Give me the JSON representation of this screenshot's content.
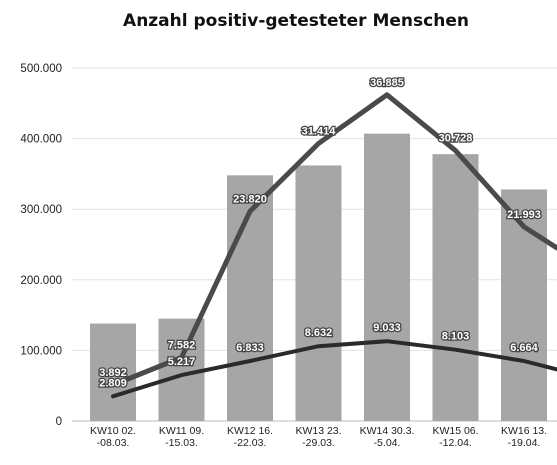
{
  "chart_data": {
    "type": "bar",
    "title": "Anzahl positiv-getesteter Menschen",
    "xlabel": "",
    "ylabel": "",
    "ylim": [
      0,
      500000
    ],
    "yticks": [
      "0",
      "100.000",
      "200.000",
      "300.000",
      "400.000",
      "500.000"
    ],
    "ytick_values": [
      0,
      100000,
      200000,
      300000,
      400000,
      500000
    ],
    "categories": [
      [
        "KW10 02.",
        "-08.03."
      ],
      [
        "KW11 09.",
        "-15.03."
      ],
      [
        "KW12 16.",
        "-22.03."
      ],
      [
        "KW13 23.",
        "-29.03."
      ],
      [
        "KW14 30.3.",
        "-5.04."
      ],
      [
        "KW15 06.",
        "-12.04."
      ],
      [
        "KW16 13.",
        "-19.04."
      ]
    ],
    "grid": true,
    "series": [
      {
        "kind": "bar",
        "color": "#a6a6a6",
        "values": [
          138000,
          145000,
          348000,
          362000,
          407000,
          378000,
          328000
        ]
      },
      {
        "kind": "line",
        "color": "#4a4a4a",
        "values": [
          51000,
          90000,
          297000,
          393000,
          462000,
          383000,
          275000
        ],
        "labels": [
          "3.892",
          "7.582",
          "23.820",
          "31.414",
          "36.885",
          "30.728",
          "21.993"
        ]
      },
      {
        "kind": "line",
        "color": "#2a2a2a",
        "values": [
          35000,
          65000,
          85000,
          106000,
          113000,
          101000,
          85000
        ],
        "labels": [
          "2.809",
          "5.217",
          "6.833",
          "8.632",
          "9.033",
          "8.103",
          "6.664"
        ]
      }
    ],
    "trailing_line_values": [
      245000,
      73000
    ]
  }
}
